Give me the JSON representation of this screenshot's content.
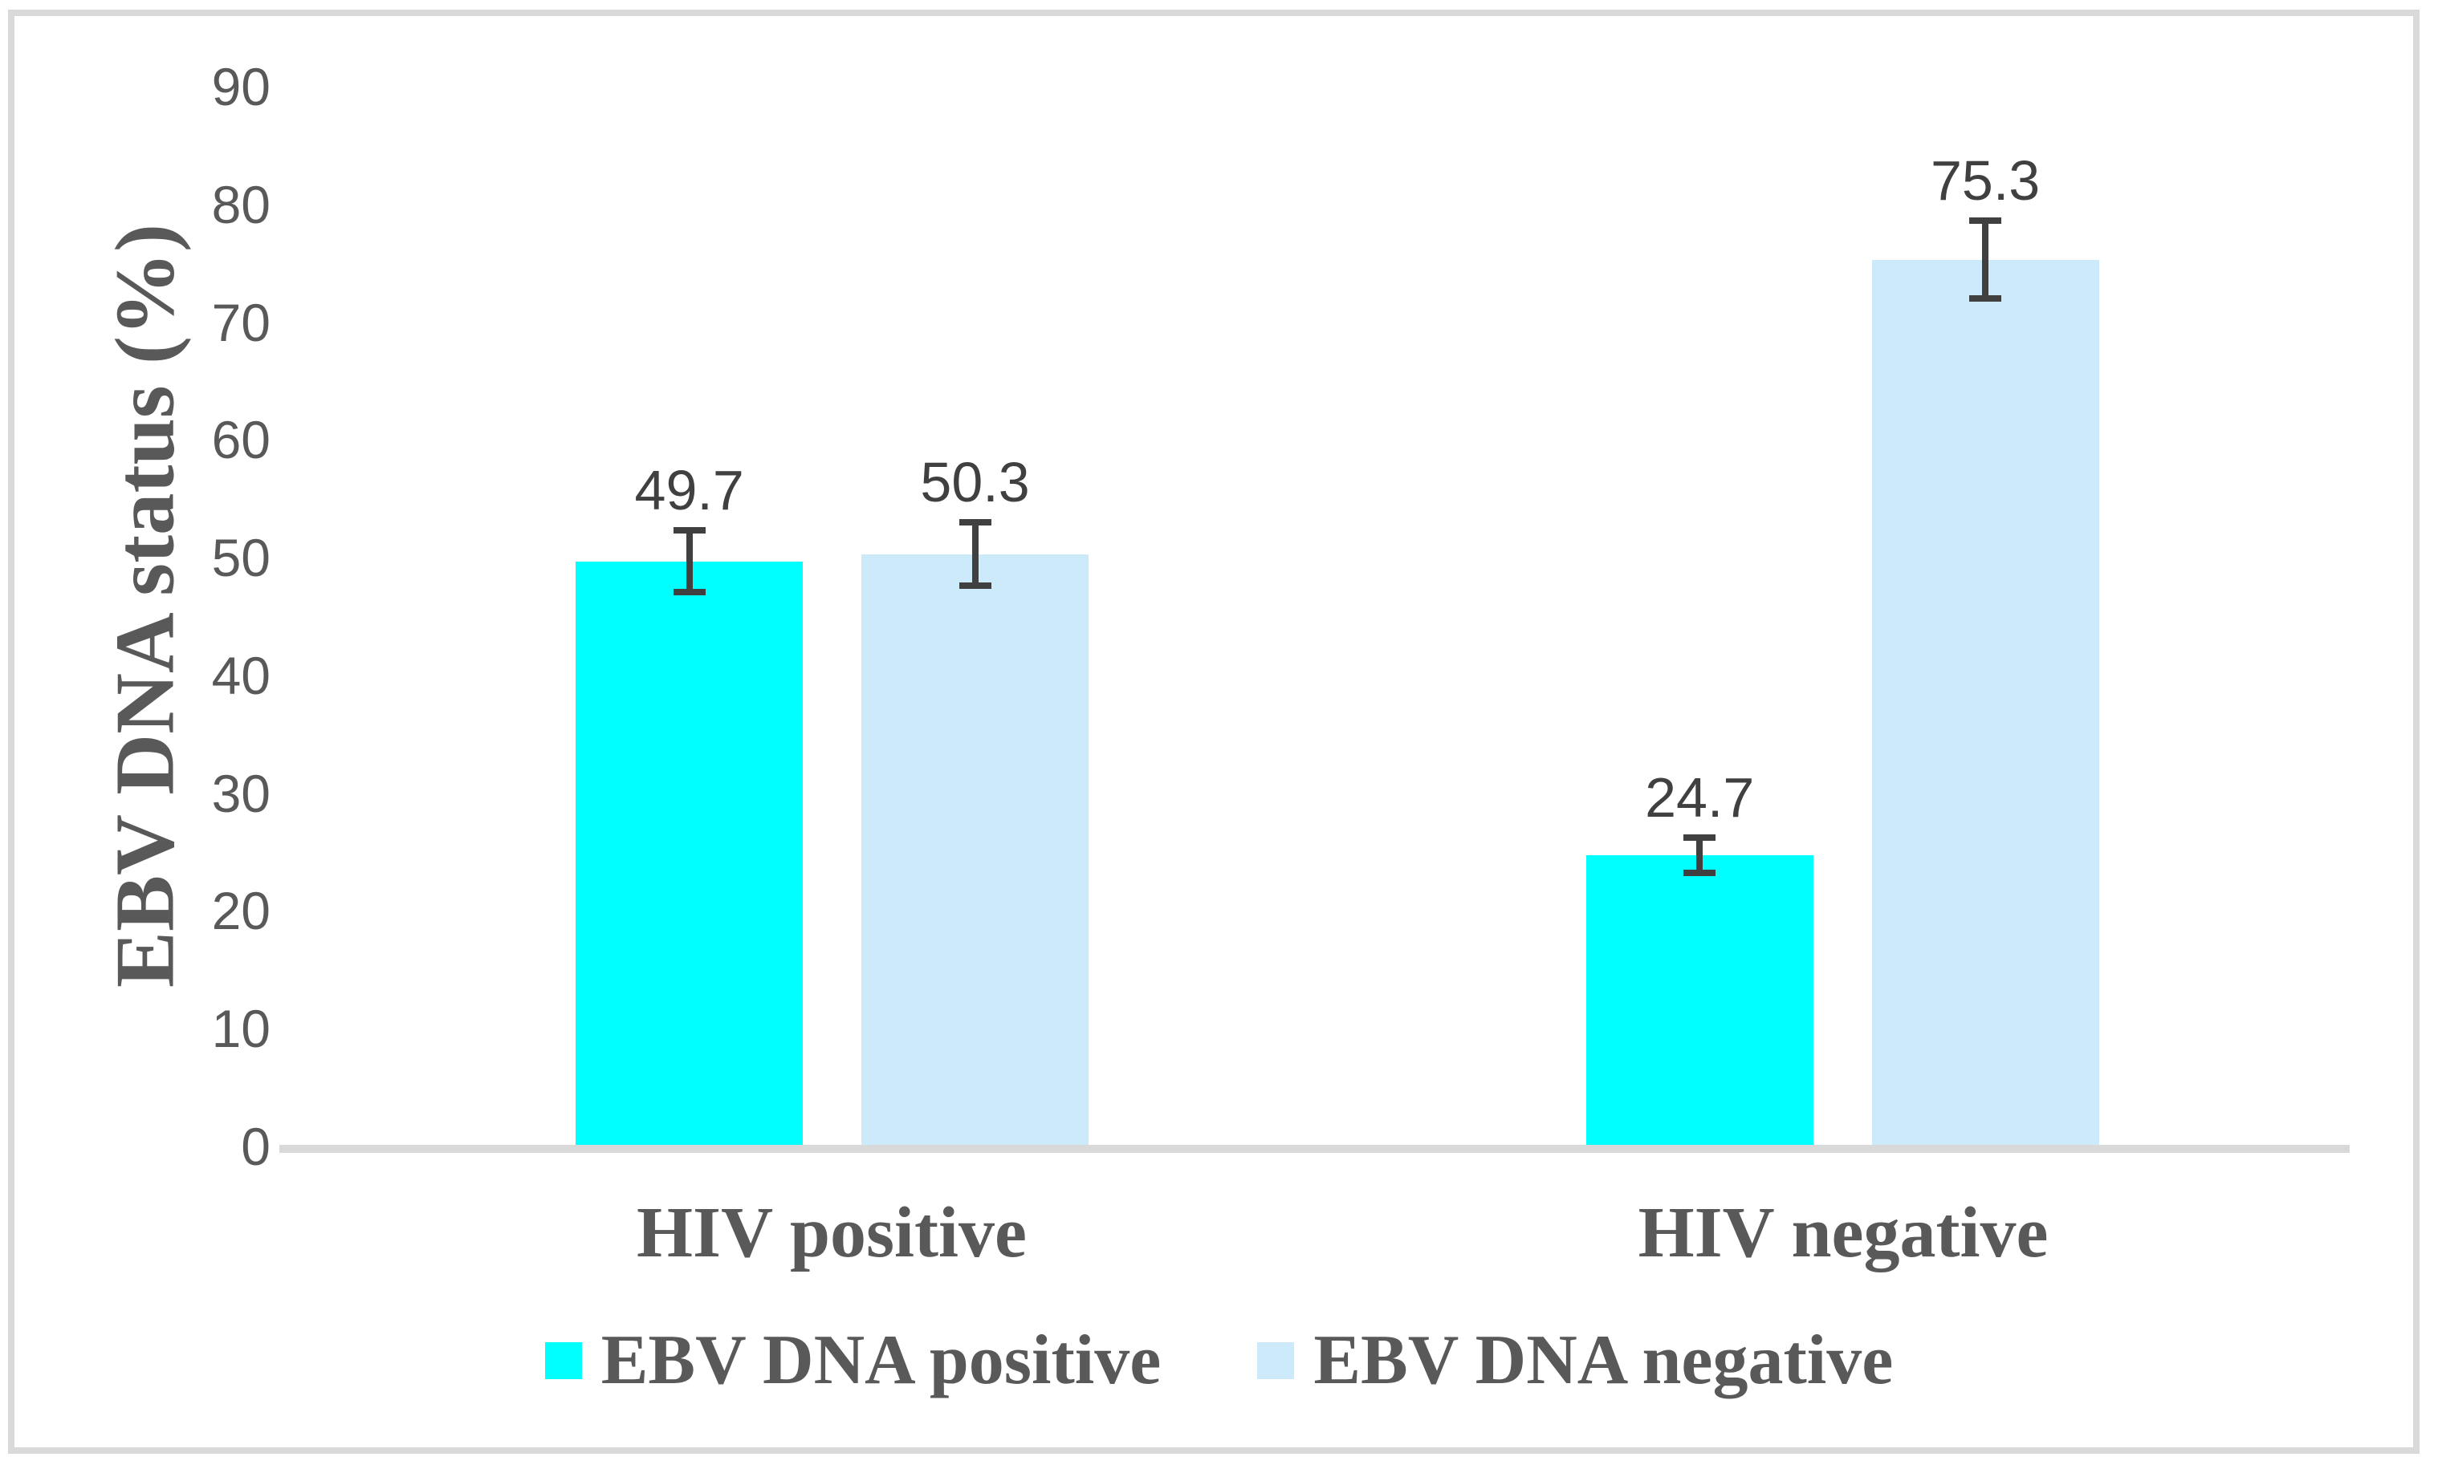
{
  "figure": {
    "background": "#FFFFFF",
    "frame_color": "#D9D9D9",
    "axis_line_color": "#D9D9D9",
    "tick_text_color": "#595959",
    "data_label_color": "#404040",
    "error_bar_color": "#404040"
  },
  "chart_data": {
    "type": "bar",
    "title": "",
    "ylabel": "EBV DNA status (%)",
    "xlabel": "",
    "ylim": [
      0,
      90
    ],
    "yticks": [
      90,
      80,
      70,
      60,
      50,
      40,
      30,
      20,
      10,
      0
    ],
    "grid": false,
    "legend_position": "bottom",
    "categories": [
      "HIV positive",
      "HIV negative"
    ],
    "series": [
      {
        "name": "EBV DNA positive",
        "color": "#00FFFF",
        "values": [
          49.7,
          24.7
        ],
        "errors": [
          2.6,
          1.5
        ]
      },
      {
        "name": "EBV DNA negative",
        "color": "#CDEAFB",
        "values": [
          50.3,
          75.3
        ],
        "errors": [
          2.7,
          3.3
        ]
      }
    ]
  }
}
